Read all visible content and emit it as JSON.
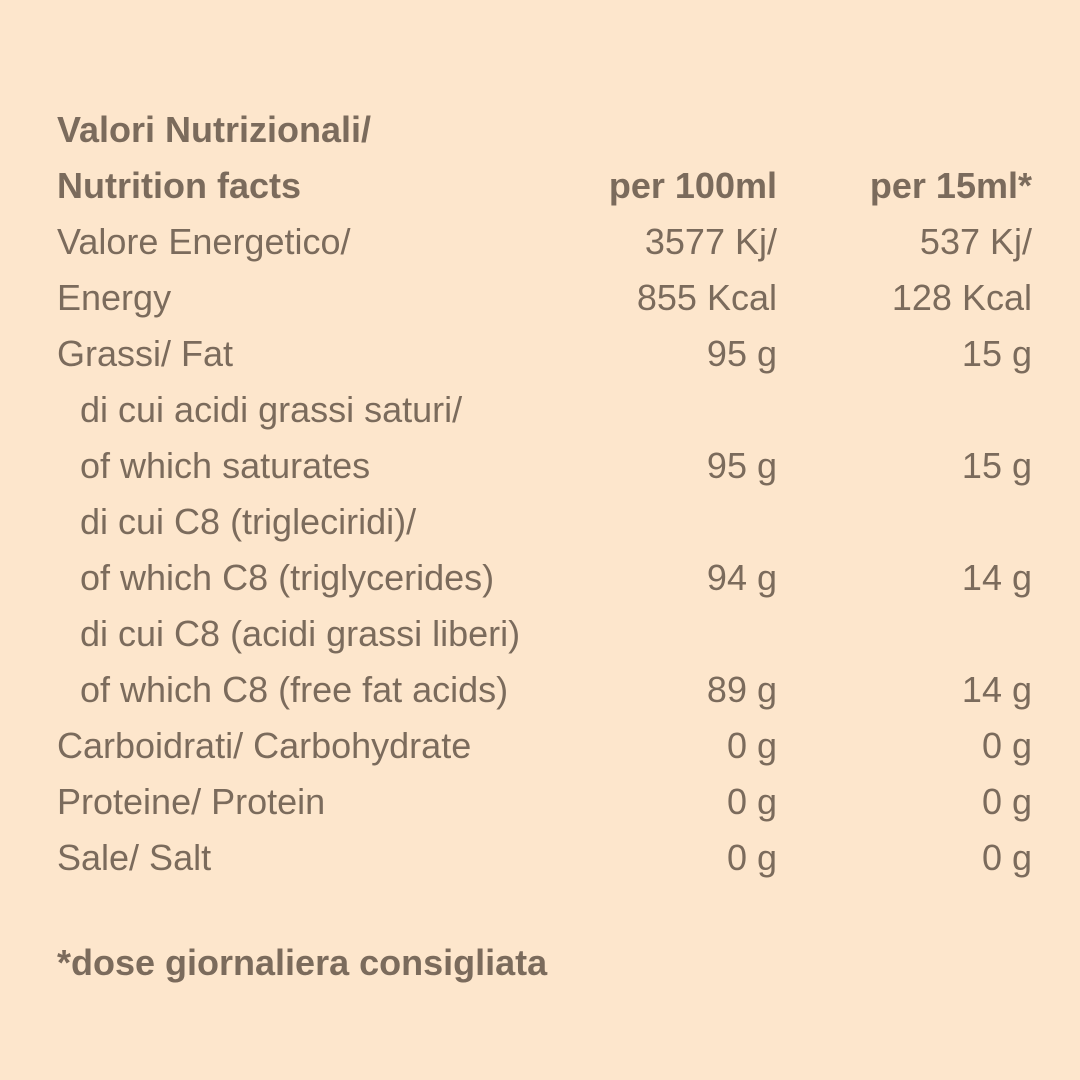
{
  "header": {
    "title_line1": "Valori Nutrizionali/",
    "title_line2": "Nutrition facts",
    "col_100ml": "per 100ml",
    "col_15ml": "per 15ml*"
  },
  "rows": [
    {
      "label": "Valore Energetico/",
      "v100": "3577 Kj/",
      "v15": "537 Kj/"
    },
    {
      "label": "Energy",
      "v100": "855 Kcal",
      "v15": "128 Kcal"
    },
    {
      "label": "Grassi/ Fat",
      "v100": "95 g",
      "v15": "15 g"
    },
    {
      "label": "di cui acidi grassi saturi/",
      "v100": "",
      "v15": ""
    },
    {
      "label": "of which saturates",
      "v100": "95 g",
      "v15": "15 g"
    },
    {
      "label": "di cui C8 (trigleciridi)/",
      "v100": "",
      "v15": ""
    },
    {
      "label": "of which C8 (triglycerides)",
      "v100": "94 g",
      "v15": "14 g"
    },
    {
      "label": "di cui C8 (acidi grassi liberi)",
      "v100": "",
      "v15": ""
    },
    {
      "label": "of which C8 (free fat acids)",
      "v100": "89 g",
      "v15": "14 g"
    },
    {
      "label": "Carboidrati/ Carbohydrate",
      "v100": "0 g",
      "v15": "0 g"
    },
    {
      "label": "Proteine/ Protein",
      "v100": "0 g",
      "v15": "0 g"
    },
    {
      "label": "Sale/ Salt",
      "v100": "0 g",
      "v15": "0 g"
    }
  ],
  "footnote": "*dose giornaliera consigliata",
  "colors": {
    "background": "#fde6cc",
    "text": "#7b6b5c"
  }
}
